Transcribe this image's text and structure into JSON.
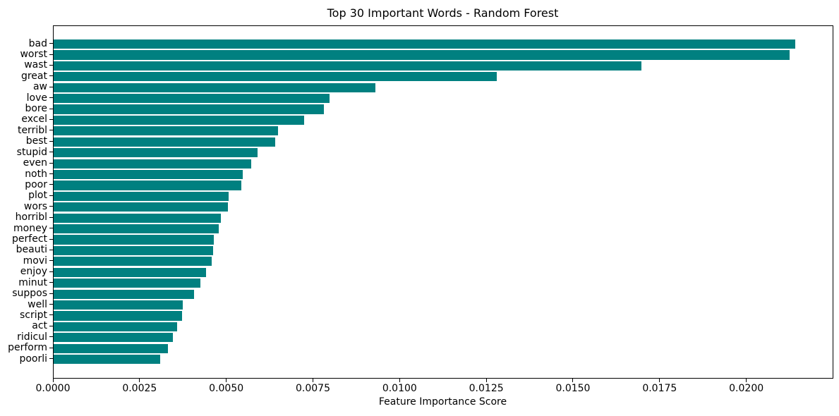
{
  "figure": {
    "title": "Top 30 Important Words - Random Forest",
    "xlabel": "Feature Importance Score"
  },
  "chart_data": {
    "type": "bar",
    "orientation": "horizontal",
    "title": "Top 30 Important Words - Random Forest",
    "xlabel": "Feature Importance Score",
    "ylabel": "",
    "categories": [
      "bad",
      "worst",
      "wast",
      "great",
      "aw",
      "love",
      "bore",
      "excel",
      "terribl",
      "best",
      "stupid",
      "even",
      "noth",
      "poor",
      "plot",
      "wors",
      "horribl",
      "money",
      "perfect",
      "beauti",
      "movi",
      "enjoy",
      "minut",
      "suppos",
      "well",
      "script",
      "act",
      "ridicul",
      "perform",
      "poorli"
    ],
    "values": [
      0.02139,
      0.02123,
      0.01695,
      0.01278,
      0.00927,
      0.00796,
      0.0078,
      0.00722,
      0.00648,
      0.00638,
      0.00589,
      0.00569,
      0.00546,
      0.00541,
      0.00505,
      0.00502,
      0.00483,
      0.00477,
      0.00462,
      0.0046,
      0.00456,
      0.00439,
      0.00424,
      0.00404,
      0.00373,
      0.0037,
      0.00357,
      0.00343,
      0.00329,
      0.00307
    ],
    "xlim": [
      0,
      0.02247
    ],
    "xticks": [
      0,
      0.0025,
      0.005,
      0.0075,
      0.01,
      0.0125,
      0.015,
      0.0175,
      0.02
    ],
    "xtick_labels": [
      "0.0000",
      "0.0025",
      "0.0050",
      "0.0075",
      "0.0100",
      "0.0125",
      "0.0150",
      "0.0175",
      "0.0200"
    ],
    "bar_color": "#008080",
    "grid": false,
    "legend_position": "none"
  }
}
